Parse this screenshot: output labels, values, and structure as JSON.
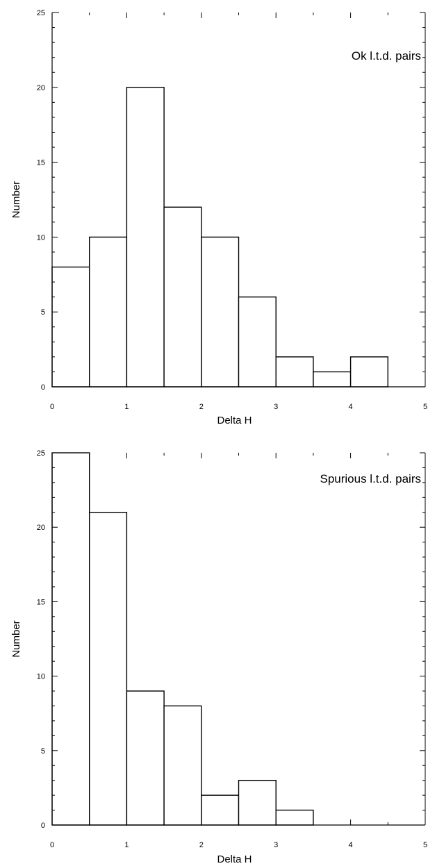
{
  "chart_data": [
    {
      "type": "bar",
      "histogram": true,
      "annotation": "Ok l.t.d. pairs",
      "xlabel": "Delta H",
      "ylabel": "Number",
      "xlim": [
        0,
        5
      ],
      "ylim": [
        0,
        25
      ],
      "x_ticks": [
        "0",
        "1",
        "2",
        "3",
        "4",
        "5"
      ],
      "y_ticks": [
        "0",
        "5",
        "10",
        "15",
        "20",
        "25"
      ],
      "bin_edges": [
        0,
        0.5,
        1,
        1.5,
        2,
        2.5,
        3,
        3.5,
        4,
        4.5
      ],
      "values": [
        8,
        10,
        20,
        12,
        10,
        6,
        2,
        1,
        2
      ],
      "grid": false
    },
    {
      "type": "bar",
      "histogram": true,
      "annotation": "Spurious l.t.d. pairs",
      "xlabel": "Delta H",
      "ylabel": "Number",
      "xlim": [
        0,
        5
      ],
      "ylim": [
        0,
        25
      ],
      "x_ticks": [
        "0",
        "1",
        "2",
        "3",
        "4",
        "5"
      ],
      "y_ticks": [
        "0",
        "5",
        "10",
        "15",
        "20",
        "25"
      ],
      "bin_edges": [
        0,
        0.5,
        1,
        1.5,
        2,
        2.5,
        3,
        3.5,
        4
      ],
      "values": [
        25,
        21,
        9,
        8,
        2,
        3,
        1,
        0
      ],
      "grid": false
    }
  ]
}
